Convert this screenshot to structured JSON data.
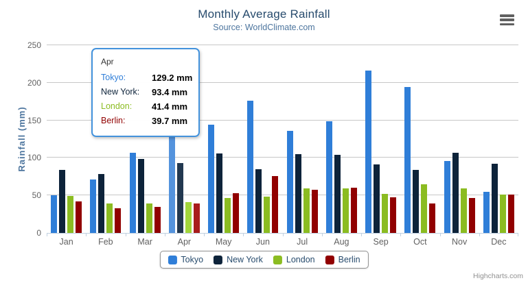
{
  "chart_data": {
    "type": "bar",
    "title": "Monthly Average Rainfall",
    "subtitle": "Source: WorldClimate.com",
    "ylabel": "Rainfall (mm)",
    "xlabel": "",
    "ylim": [
      0,
      250
    ],
    "yticks": [
      0,
      50,
      100,
      150,
      200,
      250
    ],
    "grid": true,
    "legend_position": "bottom",
    "hovered_category": "Apr",
    "categories": [
      "Jan",
      "Feb",
      "Mar",
      "Apr",
      "May",
      "Jun",
      "Jul",
      "Aug",
      "Sep",
      "Oct",
      "Nov",
      "Dec"
    ],
    "series": [
      {
        "name": "Tokyo",
        "color": "#2f7ed8",
        "hover_color": "#5493dd",
        "values": [
          49.9,
          71.5,
          106.4,
          129.2,
          144.0,
          176.0,
          135.6,
          148.5,
          216.4,
          194.1,
          95.6,
          54.4
        ]
      },
      {
        "name": "New York",
        "color": "#0d233a",
        "hover_color": "#223850",
        "values": [
          83.6,
          78.8,
          98.5,
          93.4,
          106.0,
          84.5,
          105.0,
          104.3,
          91.2,
          83.5,
          106.6,
          92.3
        ]
      },
      {
        "name": "London",
        "color": "#8bbc21",
        "hover_color": "#a2d63b",
        "values": [
          48.9,
          38.8,
          39.3,
          41.4,
          47.0,
          48.3,
          59.0,
          59.6,
          52.4,
          65.2,
          59.3,
          51.2
        ]
      },
      {
        "name": "Berlin",
        "color": "#910000",
        "hover_color": "#a81c1c",
        "values": [
          42.4,
          33.2,
          34.5,
          39.7,
          52.6,
          75.5,
          57.4,
          60.4,
          47.6,
          39.1,
          46.8,
          51.1
        ]
      }
    ]
  },
  "tooltip": {
    "header": "Apr",
    "rows": [
      {
        "series": "Tokyo",
        "value": "129.2 mm"
      },
      {
        "series": "New York",
        "value": "93.4 mm"
      },
      {
        "series": "London",
        "value": "41.4 mm"
      },
      {
        "series": "Berlin",
        "value": "39.7 mm"
      }
    ]
  },
  "credits": {
    "label": "Highcharts.com"
  },
  "colors": {
    "title_text": "#274b6d",
    "subtitle_text": "#4d759e",
    "axis_title_text": "#4d759e",
    "tick_label_text": "#606060",
    "grid_line": "#c7c7c7",
    "axis_line": "#c0d0e0",
    "legend_text": "#274b6d",
    "legend_border": "#909090",
    "tooltip_border": "#4292dc",
    "credits_text": "#909090",
    "menu_icon": "#606060"
  }
}
